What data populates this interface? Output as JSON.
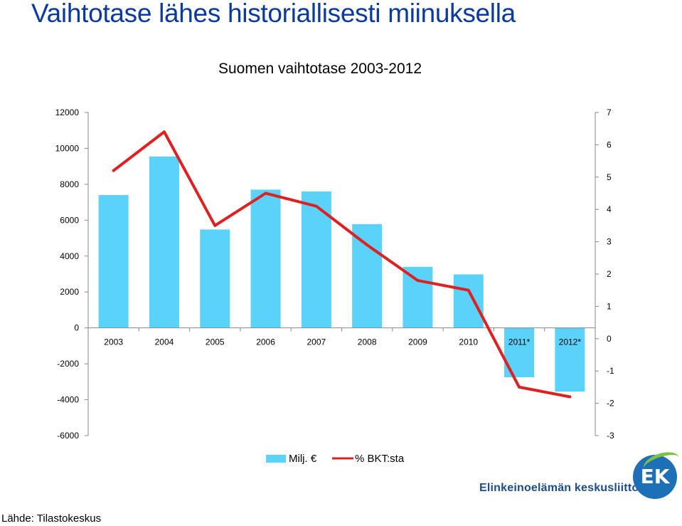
{
  "slide_title": "Vaihtotase lähes historiallisesti miinuksella",
  "source": "Lähde: Tilastokeskus",
  "logo": {
    "text": "Elinkeinoelämän keskusliitto",
    "badge": "EK"
  },
  "colors": {
    "bars": "#5BD2FA",
    "line": "#E02020",
    "title": "#0A3AA0"
  },
  "chart_data": {
    "type": "bar",
    "title": "Suomen vaihtotase 2003-2012",
    "categories": [
      "2003",
      "2004",
      "2005",
      "2006",
      "2007",
      "2008",
      "2009",
      "2010",
      "2011*",
      "2012*"
    ],
    "series": [
      {
        "name": "Milj. €",
        "type": "bar",
        "axis": "left",
        "values": [
          7400,
          9550,
          5480,
          7700,
          7600,
          5780,
          3400,
          2980,
          -2750,
          -3550
        ]
      },
      {
        "name": "% BKT:sta",
        "type": "line",
        "axis": "right",
        "values": [
          5.2,
          6.4,
          3.5,
          4.5,
          4.1,
          2.9,
          1.8,
          1.5,
          -1.5,
          -1.8
        ]
      }
    ],
    "ylim_left": [
      -6000,
      12000
    ],
    "yticks_left": [
      12000,
      10000,
      8000,
      6000,
      4000,
      2000,
      0,
      -2000,
      -4000,
      -6000
    ],
    "ylim_right": [
      -3,
      7
    ],
    "yticks_right": [
      7,
      6,
      5,
      4,
      3,
      2,
      1,
      0,
      -1,
      -2,
      -3
    ],
    "grid": false,
    "legend": "bottom"
  }
}
